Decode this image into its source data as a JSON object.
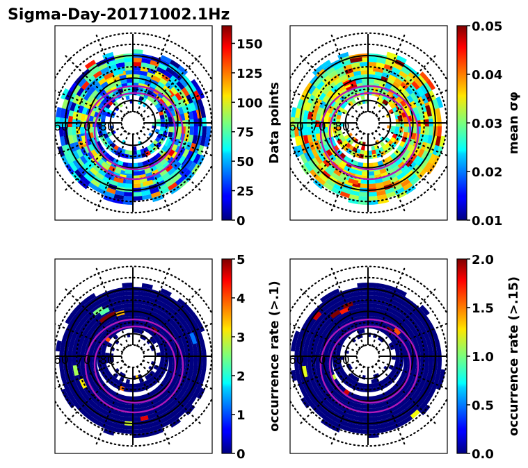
{
  "figure": {
    "title": "Sigma-Day-20171002.1Hz"
  },
  "chart_data": [
    {
      "type": "heatmap",
      "projection": "polar (magnetic latitude / local time)",
      "panel": "top-left",
      "title": "",
      "colormap": "jet",
      "colorbar": {
        "label": "Data points",
        "range": [
          0,
          165
        ],
        "ticks": [
          0,
          25,
          50,
          75,
          100,
          125,
          150
        ],
        "tick_labels": [
          "0",
          "25",
          "50",
          "75",
          "100",
          "125",
          "150"
        ]
      },
      "lat_labels": [
        "60",
        "70",
        "80"
      ],
      "lat_circles_solid": [
        60,
        70,
        80
      ],
      "oval_boundaries": "two magenta auroral oval contours",
      "cells": [
        {
          "r": 0.7,
          "t": 100,
          "v": 60
        },
        {
          "r": 0.7,
          "t": 110,
          "v": 130
        },
        {
          "r": 0.78,
          "t": 170,
          "v": 140
        },
        {
          "r": 0.62,
          "t": 190,
          "v": 100
        },
        {
          "r": 0.55,
          "t": 260,
          "v": 70
        },
        {
          "r": 0.72,
          "t": 280,
          "v": 110
        },
        {
          "r": 0.66,
          "t": 60,
          "v": 120
        },
        {
          "r": 0.6,
          "t": 40,
          "v": 80
        },
        {
          "r": 0.8,
          "t": 320,
          "v": 30
        },
        {
          "r": 0.5,
          "t": 330,
          "v": 55
        },
        {
          "r": 0.58,
          "t": 230,
          "v": 90
        },
        {
          "r": 0.68,
          "t": 250,
          "v": 130
        }
      ]
    },
    {
      "type": "heatmap",
      "projection": "polar (magnetic latitude / local time)",
      "panel": "top-right",
      "colormap": "jet",
      "colorbar": {
        "label": "mean σφ",
        "range": [
          0.01,
          0.05
        ],
        "ticks": [
          0.01,
          0.02,
          0.03,
          0.04,
          0.05
        ],
        "tick_labels": [
          "0.01",
          "0.02",
          "0.03",
          "0.04",
          "0.05"
        ]
      },
      "lat_labels": [
        "60",
        "70",
        "80"
      ],
      "lat_circles_solid": [
        60,
        70,
        80
      ],
      "cells": [
        {
          "r": 0.36,
          "t": 50,
          "v": 0.05
        },
        {
          "r": 0.78,
          "t": 10,
          "v": 0.05
        },
        {
          "r": 0.4,
          "t": 10,
          "v": 0.05
        },
        {
          "r": 0.6,
          "t": 110,
          "v": 0.045
        },
        {
          "r": 0.85,
          "t": 95,
          "v": 0.05
        },
        {
          "r": 0.7,
          "t": 250,
          "v": 0.042
        },
        {
          "r": 0.72,
          "t": 75,
          "v": 0.04
        },
        {
          "r": 0.5,
          "t": 150,
          "v": 0.038
        },
        {
          "r": 0.66,
          "t": 195,
          "v": 0.04
        }
      ]
    },
    {
      "type": "heatmap",
      "projection": "polar (magnetic latitude / local time)",
      "panel": "bottom-left",
      "colormap": "jet",
      "colorbar": {
        "label": "occurrence rate (>.1)",
        "range": [
          0,
          5
        ],
        "ticks": [
          0,
          1,
          2,
          3,
          4,
          5
        ],
        "tick_labels": [
          "0",
          "1",
          "2",
          "3",
          "4",
          "5"
        ]
      },
      "lat_labels": [
        "60",
        "70",
        "80"
      ],
      "lat_circles_solid": [
        60,
        70,
        80
      ],
      "cells": [
        {
          "r": 0.45,
          "t": 50,
          "v": 5
        },
        {
          "r": 0.62,
          "t": 120,
          "v": 5
        },
        {
          "r": 0.62,
          "t": 110,
          "v": 5
        },
        {
          "r": 0.7,
          "t": 115,
          "v": 2.3
        },
        {
          "r": 0.75,
          "t": 120,
          "v": 2.5
        },
        {
          "r": 0.6,
          "t": 100,
          "v": 3.5
        },
        {
          "r": 0.68,
          "t": 200,
          "v": 3.2
        },
        {
          "r": 0.72,
          "t": 185,
          "v": 2.7
        },
        {
          "r": 0.8,
          "t": 15,
          "v": 1.2
        }
      ]
    },
    {
      "type": "heatmap",
      "projection": "polar (magnetic latitude / local time)",
      "panel": "bottom-right",
      "colormap": "jet",
      "colorbar": {
        "label": "occurrence rate (>.15)",
        "range": [
          0.0,
          2.0
        ],
        "ticks": [
          0.0,
          0.5,
          1.0,
          1.5,
          2.0
        ],
        "tick_labels": [
          "0.0",
          "0.5",
          "1.0",
          "1.5",
          "2.0"
        ]
      },
      "lat_labels": [
        "60",
        "70",
        "80"
      ],
      "lat_circles_solid": [
        60,
        70,
        80
      ],
      "cells": [
        {
          "r": 0.45,
          "t": 50,
          "v": 2.0
        },
        {
          "r": 0.5,
          "t": 40,
          "v": 1.6
        },
        {
          "r": 0.7,
          "t": 120,
          "v": 2.0
        },
        {
          "r": 0.68,
          "t": 110,
          "v": 1.7
        },
        {
          "r": 0.73,
          "t": 105,
          "v": 2.0
        },
        {
          "r": 0.8,
          "t": 185,
          "v": 1.2
        }
      ]
    }
  ]
}
